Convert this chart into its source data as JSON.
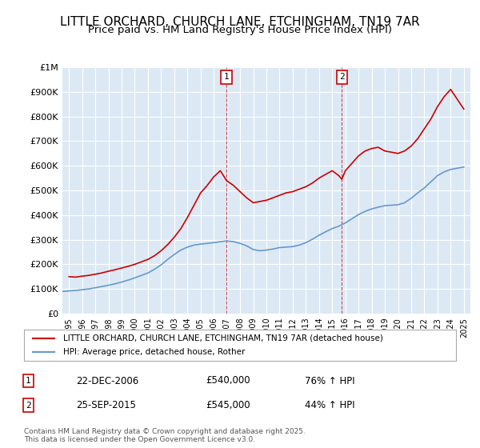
{
  "title": "LITTLE ORCHARD, CHURCH LANE, ETCHINGHAM, TN19 7AR",
  "subtitle": "Price paid vs. HM Land Registry's House Price Index (HPI)",
  "title_fontsize": 11,
  "subtitle_fontsize": 9.5,
  "background_color": "#dce9f5",
  "plot_bg_color": "#dce9f5",
  "fig_bg_color": "#ffffff",
  "red_color": "#cc0000",
  "blue_color": "#6699cc",
  "grid_color": "#ffffff",
  "ylim": [
    0,
    1000000
  ],
  "yticks": [
    0,
    100000,
    200000,
    300000,
    400000,
    500000,
    600000,
    700000,
    800000,
    900000,
    1000000
  ],
  "ytick_labels": [
    "£0",
    "£100K",
    "£200K",
    "£300K",
    "£400K",
    "£500K",
    "£600K",
    "£700K",
    "£800K",
    "£900K",
    "£1M"
  ],
  "xlim_start": 1994.5,
  "xlim_end": 2025.5,
  "sale1_x": 2006.97,
  "sale1_y": 540000,
  "sale1_label": "1",
  "sale1_date": "22-DEC-2006",
  "sale1_price": "£540,000",
  "sale1_hpi": "76% ↑ HPI",
  "sale2_x": 2015.73,
  "sale2_y": 545000,
  "sale2_label": "2",
  "sale2_date": "25-SEP-2015",
  "sale2_price": "£545,000",
  "sale2_hpi": "44% ↑ HPI",
  "legend_line1": "LITTLE ORCHARD, CHURCH LANE, ETCHINGHAM, TN19 7AR (detached house)",
  "legend_line2": "HPI: Average price, detached house, Rother",
  "footer": "Contains HM Land Registry data © Crown copyright and database right 2025.\nThis data is licensed under the Open Government Licence v3.0.",
  "red_x": [
    1995.0,
    1995.5,
    1996.0,
    1996.5,
    1997.0,
    1997.5,
    1998.0,
    1998.5,
    1999.0,
    1999.5,
    2000.0,
    2000.5,
    2001.0,
    2001.5,
    2002.0,
    2002.5,
    2003.0,
    2003.5,
    2004.0,
    2004.5,
    2005.0,
    2005.5,
    2006.0,
    2006.5,
    2006.97,
    2007.5,
    2008.0,
    2008.5,
    2009.0,
    2009.5,
    2010.0,
    2010.5,
    2011.0,
    2011.5,
    2012.0,
    2012.5,
    2013.0,
    2013.5,
    2014.0,
    2014.5,
    2015.0,
    2015.5,
    2015.73,
    2016.0,
    2016.5,
    2017.0,
    2017.5,
    2018.0,
    2018.5,
    2019.0,
    2019.5,
    2020.0,
    2020.5,
    2021.0,
    2021.5,
    2022.0,
    2022.5,
    2023.0,
    2023.5,
    2024.0,
    2024.5,
    2025.0
  ],
  "red_y": [
    150000,
    148000,
    152000,
    155000,
    160000,
    165000,
    172000,
    178000,
    185000,
    192000,
    200000,
    210000,
    220000,
    235000,
    255000,
    280000,
    310000,
    345000,
    390000,
    440000,
    490000,
    520000,
    555000,
    580000,
    540000,
    520000,
    495000,
    470000,
    450000,
    455000,
    460000,
    470000,
    480000,
    490000,
    495000,
    505000,
    515000,
    530000,
    550000,
    565000,
    580000,
    560000,
    545000,
    580000,
    610000,
    640000,
    660000,
    670000,
    675000,
    660000,
    655000,
    650000,
    660000,
    680000,
    710000,
    750000,
    790000,
    840000,
    880000,
    910000,
    870000,
    830000
  ],
  "blue_x": [
    1994.5,
    1995.0,
    1995.5,
    1996.0,
    1996.5,
    1997.0,
    1997.5,
    1998.0,
    1998.5,
    1999.0,
    1999.5,
    2000.0,
    2000.5,
    2001.0,
    2001.5,
    2002.0,
    2002.5,
    2003.0,
    2003.5,
    2004.0,
    2004.5,
    2005.0,
    2005.5,
    2006.0,
    2006.5,
    2007.0,
    2007.5,
    2008.0,
    2008.5,
    2009.0,
    2009.5,
    2010.0,
    2010.5,
    2011.0,
    2011.5,
    2012.0,
    2012.5,
    2013.0,
    2013.5,
    2014.0,
    2014.5,
    2015.0,
    2015.5,
    2016.0,
    2016.5,
    2017.0,
    2017.5,
    2018.0,
    2018.5,
    2019.0,
    2019.5,
    2020.0,
    2020.5,
    2021.0,
    2021.5,
    2022.0,
    2022.5,
    2023.0,
    2023.5,
    2024.0,
    2024.5,
    2025.0
  ],
  "blue_y": [
    90000,
    92000,
    94000,
    97000,
    100000,
    105000,
    110000,
    115000,
    121000,
    128000,
    136000,
    145000,
    155000,
    165000,
    180000,
    198000,
    220000,
    240000,
    258000,
    270000,
    278000,
    282000,
    285000,
    288000,
    292000,
    295000,
    292000,
    285000,
    275000,
    260000,
    255000,
    258000,
    262000,
    268000,
    270000,
    272000,
    278000,
    288000,
    302000,
    318000,
    332000,
    345000,
    355000,
    368000,
    385000,
    402000,
    415000,
    425000,
    432000,
    438000,
    440000,
    442000,
    450000,
    468000,
    490000,
    510000,
    535000,
    560000,
    575000,
    585000,
    590000,
    595000
  ]
}
